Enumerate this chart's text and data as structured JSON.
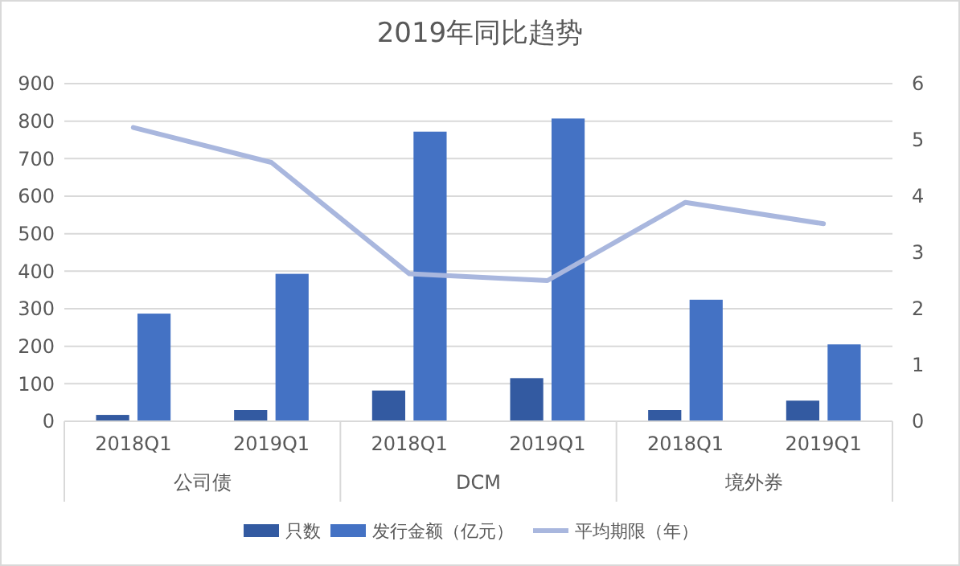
{
  "chart_data": {
    "type": "bar",
    "title": "2019年同比趋势",
    "categories": [
      "2018Q1",
      "2019Q1",
      "2018Q1",
      "2019Q1",
      "2018Q1",
      "2019Q1"
    ],
    "annotations": [
      "公司债",
      "DCM",
      "境外券"
    ],
    "series": [
      {
        "name": "只数",
        "color": "#335aa1",
        "values": [
          17,
          30,
          82,
          115,
          30,
          55
        ]
      },
      {
        "name": "发行金额（亿元）",
        "color": "#4472c4",
        "values": [
          287,
          393,
          772,
          807,
          324,
          205
        ]
      },
      {
        "name": "平均期限（年）",
        "type": "line",
        "axis": "y2",
        "color": "#a9b7de",
        "values": [
          5.22,
          4.6,
          2.62,
          2.5,
          3.89,
          3.51
        ]
      }
    ],
    "ylim": [
      0,
      900
    ],
    "yticks": [
      0,
      100,
      200,
      300,
      400,
      500,
      600,
      700,
      800,
      900
    ],
    "y2lim": [
      0,
      6
    ],
    "y2ticks": [
      0,
      1,
      2,
      3,
      4,
      5,
      6
    ],
    "grid": "y",
    "legend": "bottom",
    "marker": "none"
  }
}
